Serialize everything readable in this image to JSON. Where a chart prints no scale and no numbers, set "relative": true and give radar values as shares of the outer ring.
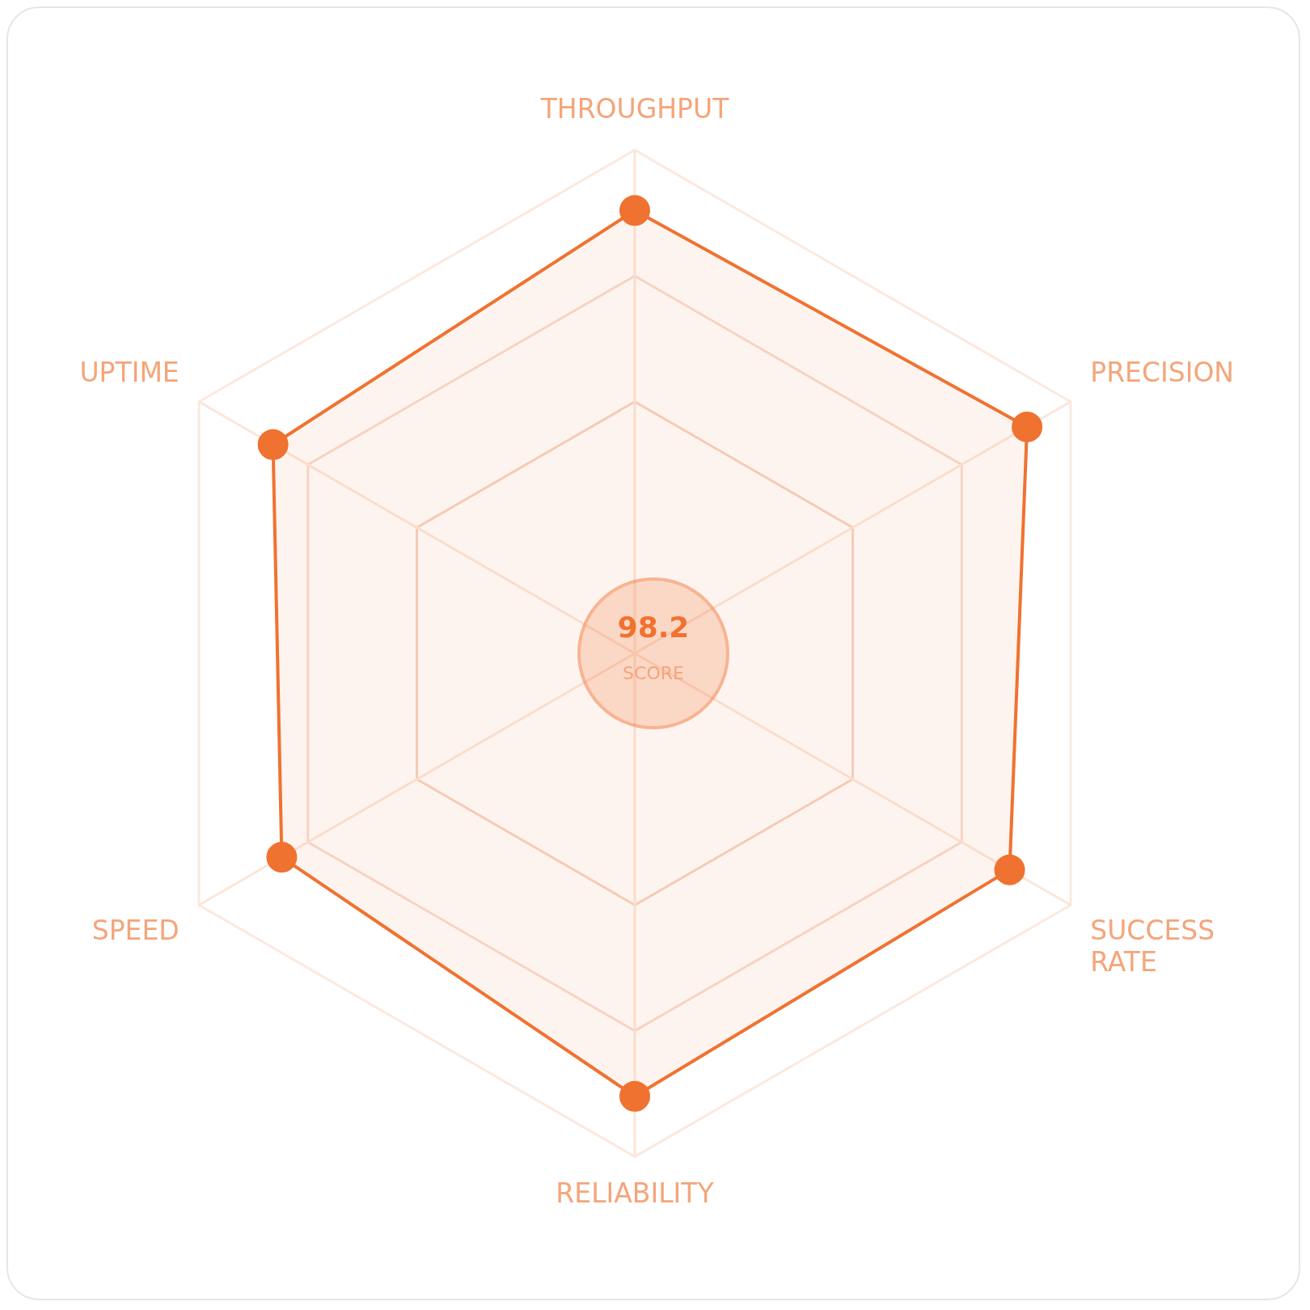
{
  "chart_data": {
    "type": "radar",
    "relative": true,
    "categories": [
      "THROUGHPUT",
      "PRECISION",
      "SUCCESS RATE",
      "RELIABILITY",
      "SPEED",
      "UPTIME"
    ],
    "series": [
      {
        "color": "#f07230",
        "values": [
          0.88,
          0.9,
          0.86,
          0.88,
          0.81,
          0.83
        ]
      }
    ],
    "grid": true,
    "marker": "circle",
    "legend": false,
    "annotations": [
      "98.2",
      "SCORE"
    ]
  }
}
